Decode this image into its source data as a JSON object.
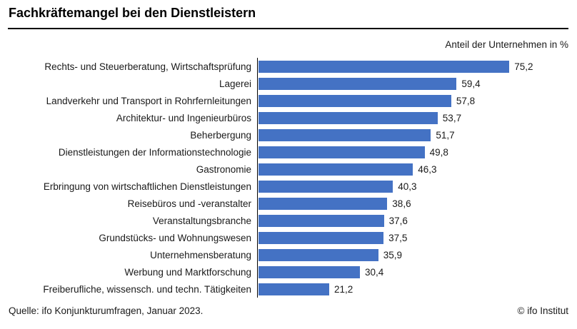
{
  "header": {
    "title": "Fachkräftemangel bei den Dienstleistern",
    "unit_note": "Anteil der Unternehmen in %"
  },
  "footer": {
    "source": "Quelle: ifo Konjunkturumfragen, Januar 2023.",
    "copyright": "© ifo Institut"
  },
  "chart_data": {
    "type": "bar",
    "orientation": "horizontal",
    "title": "Fachkräftemangel bei den Dienstleistern",
    "xlabel": "Anteil der Unternehmen in %",
    "xlim": [
      0,
      80
    ],
    "grid": false,
    "legend": false,
    "bar_color": "#4472C4",
    "axis_color": "#000000",
    "categories": [
      "Rechts- und Steuerberatung, Wirtschaftsprüfung",
      "Lagerei",
      "Landverkehr und Transport in Rohrfernleitungen",
      "Architektur- und Ingenieurbüros",
      "Beherbergung",
      "Dienstleistungen der Informationstechnologie",
      "Gastronomie",
      "Erbringung von wirtschaftlichen Dienstleistungen",
      "Reisebüros und -veranstalter",
      "Veranstaltungsbranche",
      "Grundstücks- und Wohnungswesen",
      "Unternehmensberatung",
      "Werbung und Marktforschung",
      "Freiberufliche, wissensch. und techn. Tätigkeiten"
    ],
    "values": [
      75.2,
      59.4,
      57.8,
      53.7,
      51.7,
      49.8,
      46.3,
      40.3,
      38.6,
      37.6,
      37.5,
      35.9,
      30.4,
      21.2
    ],
    "value_labels": [
      "75,2",
      "59,4",
      "57,8",
      "53,7",
      "51,7",
      "49,8",
      "46,3",
      "40,3",
      "38,6",
      "37,6",
      "37,5",
      "35,9",
      "30,4",
      "21,2"
    ]
  }
}
